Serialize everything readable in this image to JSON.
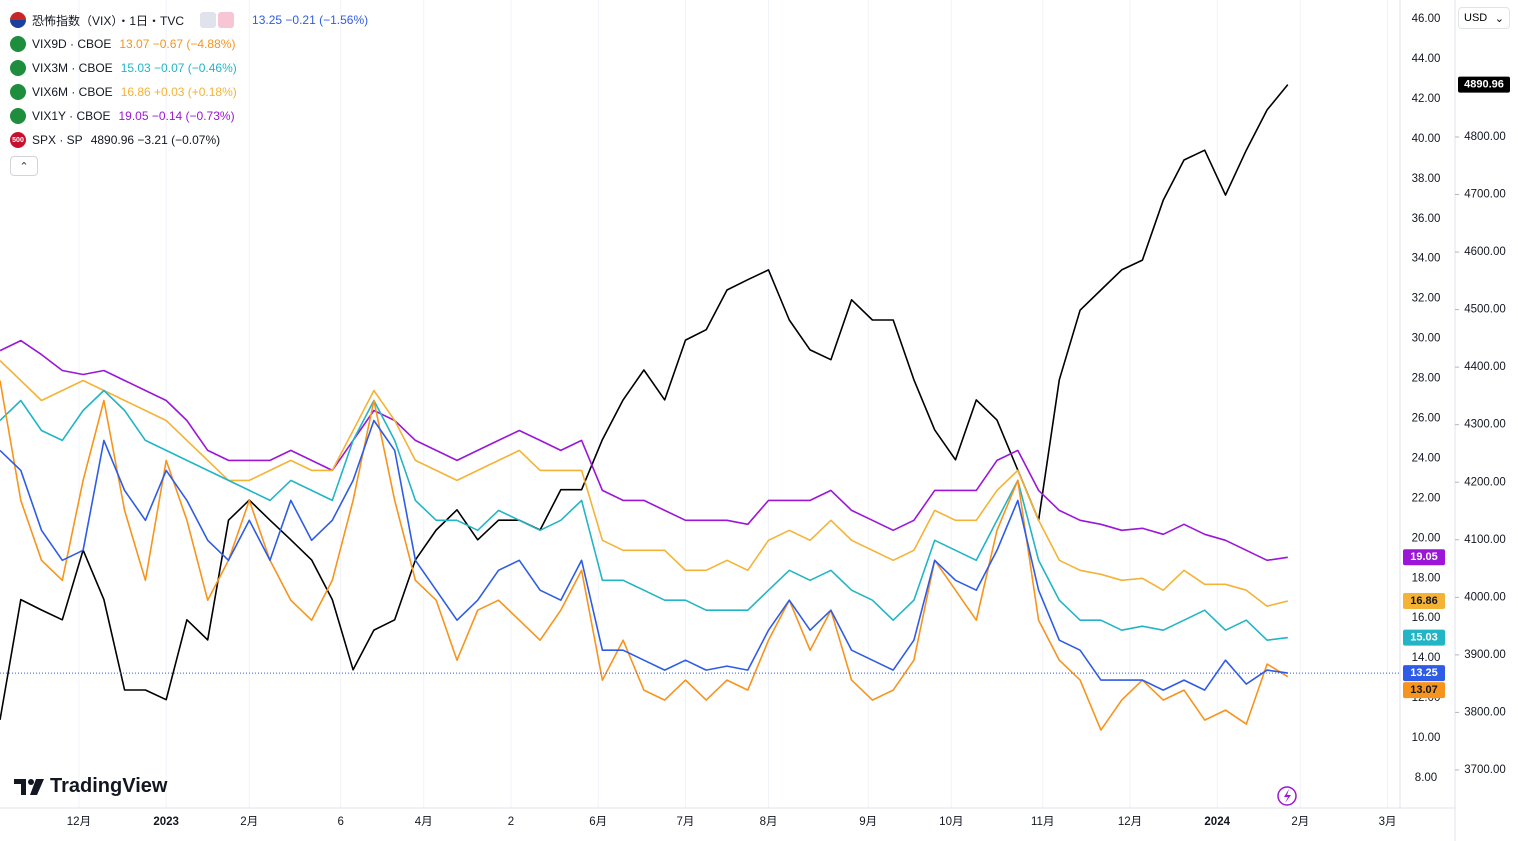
{
  "chart_data": {
    "type": "line",
    "x": [
      0,
      5,
      10,
      15,
      20,
      25,
      30,
      35,
      40,
      45,
      50,
      55,
      60,
      65,
      70,
      75,
      80,
      85,
      90,
      95,
      100,
      105,
      110,
      115,
      120,
      125,
      130,
      135,
      140,
      145,
      150,
      155,
      160,
      165,
      170,
      175,
      180,
      185,
      190,
      195,
      200,
      205,
      210,
      215,
      220,
      225,
      230,
      235,
      240,
      245,
      250,
      255,
      260,
      265,
      270,
      275,
      280,
      285,
      290,
      295,
      300,
      305,
      310
    ],
    "xlim": [
      0,
      337
    ],
    "xticks": [
      {
        "value": 19,
        "label": "12月"
      },
      {
        "value": 40,
        "label": "2023"
      },
      {
        "value": 60,
        "label": "2月"
      },
      {
        "value": 82,
        "label": "6"
      },
      {
        "value": 102,
        "label": "4月"
      },
      {
        "value": 123,
        "label": "2"
      },
      {
        "value": 144,
        "label": "6月"
      },
      {
        "value": 165,
        "label": "7月"
      },
      {
        "value": 185,
        "label": "8月"
      },
      {
        "value": 209,
        "label": "9月"
      },
      {
        "value": 229,
        "label": "10月"
      },
      {
        "value": 251,
        "label": "11月"
      },
      {
        "value": 272,
        "label": "12月"
      },
      {
        "value": 293,
        "label": "2024"
      },
      {
        "value": 313,
        "label": "2月"
      },
      {
        "value": 334,
        "label": "3月"
      }
    ],
    "ylim": [
      8,
      46
    ],
    "yticks": [
      {
        "value": 8,
        "label": "8.00"
      },
      {
        "value": 10,
        "label": "10.00"
      },
      {
        "value": 12,
        "label": "12.00"
      },
      {
        "value": 14,
        "label": "14.00"
      },
      {
        "value": 16,
        "label": "16.00"
      },
      {
        "value": 18,
        "label": "18.00"
      },
      {
        "value": 20,
        "label": "20.00"
      },
      {
        "value": 22,
        "label": "22.00"
      },
      {
        "value": 24,
        "label": "24.00"
      },
      {
        "value": 26,
        "label": "26.00"
      },
      {
        "value": 28,
        "label": "28.00"
      },
      {
        "value": 30,
        "label": "30.00"
      },
      {
        "value": 32,
        "label": "32.00"
      },
      {
        "value": 34,
        "label": "34.00"
      },
      {
        "value": 36,
        "label": "36.00"
      },
      {
        "value": 38,
        "label": "38.00"
      },
      {
        "value": 40,
        "label": "40.00"
      },
      {
        "value": 42,
        "label": "42.00"
      },
      {
        "value": 44,
        "label": "44.00"
      },
      {
        "value": 46,
        "label": "46.00"
      }
    ],
    "y2lim": [
      3686,
      5005
    ],
    "y2ticks": [
      {
        "value": 3700,
        "label": "3700.00"
      },
      {
        "value": 3800,
        "label": "3800.00"
      },
      {
        "value": 3900,
        "label": "3900.00"
      },
      {
        "value": 4000,
        "label": "4000.00"
      },
      {
        "value": 4100,
        "label": "4100.00"
      },
      {
        "value": 4200,
        "label": "4200.00"
      },
      {
        "value": 4300,
        "label": "4300.00"
      },
      {
        "value": 4400,
        "label": "4400.00"
      },
      {
        "value": 4500,
        "label": "4500.00"
      },
      {
        "value": 4600,
        "label": "4600.00"
      },
      {
        "value": 4700,
        "label": "4700.00"
      },
      {
        "value": 4800,
        "label": "4800.00"
      }
    ],
    "grid": true,
    "currency": "USD",
    "logo": "TradingView",
    "series": [
      {
        "name": "恐怖指数（VIX）・1日・TVC",
        "legend_value": "13.25 −0.21 (−1.56%)",
        "color": "#2f5ce6",
        "values": [
          24.4,
          23.4,
          20.4,
          18.9,
          19.4,
          24.9,
          22.4,
          20.9,
          23.4,
          21.9,
          19.9,
          18.9,
          20.9,
          18.9,
          21.9,
          19.9,
          20.9,
          22.9,
          25.9,
          24.4,
          18.9,
          17.4,
          15.9,
          16.9,
          18.4,
          18.9,
          17.4,
          16.9,
          18.9,
          14.4,
          14.4,
          13.9,
          13.4,
          13.9,
          13.4,
          13.6,
          13.4,
          15.4,
          16.9,
          15.4,
          16.4,
          14.4,
          13.9,
          13.4,
          14.9,
          18.9,
          17.9,
          17.4,
          19.4,
          21.9,
          17.4,
          14.9,
          14.4,
          12.9,
          12.9,
          12.9,
          12.4,
          12.9,
          12.4,
          13.9,
          12.7,
          13.4,
          13.25
        ]
      },
      {
        "name": "VIX9D · CBOE",
        "legend_value": "13.07 −0.67 (−4.88%)",
        "color": "#f7941d",
        "values": [
          27.9,
          21.9,
          18.9,
          17.9,
          22.9,
          26.9,
          21.4,
          17.9,
          23.9,
          20.9,
          16.9,
          18.9,
          21.9,
          18.9,
          16.9,
          15.9,
          17.9,
          21.9,
          26.9,
          21.9,
          17.9,
          16.9,
          13.9,
          16.4,
          16.9,
          15.9,
          14.9,
          16.4,
          18.4,
          12.9,
          14.9,
          12.4,
          11.9,
          12.9,
          11.9,
          12.9,
          12.4,
          14.9,
          16.9,
          14.4,
          16.4,
          12.9,
          11.9,
          12.4,
          13.9,
          18.9,
          17.4,
          15.9,
          20.4,
          22.9,
          15.9,
          13.9,
          12.9,
          10.4,
          11.9,
          12.9,
          11.9,
          12.4,
          10.9,
          11.4,
          10.7,
          13.7,
          13.07
        ]
      },
      {
        "name": "VIX3M · CBOE",
        "legend_value": "15.03 −0.07 (−0.46%)",
        "color": "#22b5c5",
        "values": [
          25.9,
          26.9,
          25.4,
          24.9,
          26.4,
          27.4,
          26.4,
          24.9,
          24.4,
          23.9,
          23.4,
          22.9,
          22.4,
          21.9,
          22.9,
          22.4,
          21.9,
          24.9,
          26.9,
          24.9,
          21.9,
          20.9,
          20.9,
          20.4,
          21.4,
          20.9,
          20.4,
          20.9,
          21.9,
          17.9,
          17.9,
          17.4,
          16.9,
          16.9,
          16.4,
          16.4,
          16.4,
          17.4,
          18.4,
          17.9,
          18.4,
          17.4,
          16.9,
          15.9,
          16.9,
          19.9,
          19.4,
          18.9,
          20.9,
          22.9,
          18.9,
          16.9,
          15.9,
          15.9,
          15.4,
          15.6,
          15.4,
          15.9,
          16.4,
          15.4,
          15.9,
          14.9,
          15.03
        ]
      },
      {
        "name": "VIX6M · CBOE",
        "legend_value": "16.86 +0.03 (+0.18%)",
        "color": "#f5b335",
        "values": [
          28.9,
          27.9,
          26.9,
          27.4,
          27.9,
          27.4,
          26.9,
          26.4,
          25.9,
          24.9,
          23.9,
          22.9,
          22.9,
          23.4,
          23.9,
          23.4,
          23.4,
          25.4,
          27.4,
          25.9,
          23.9,
          23.4,
          22.9,
          23.4,
          23.9,
          24.4,
          23.4,
          23.4,
          23.4,
          19.9,
          19.4,
          19.4,
          19.4,
          18.4,
          18.4,
          18.9,
          18.4,
          19.9,
          20.4,
          19.9,
          20.9,
          19.9,
          19.4,
          18.9,
          19.4,
          21.4,
          20.9,
          20.9,
          22.4,
          23.4,
          20.9,
          18.9,
          18.4,
          18.2,
          17.9,
          18.0,
          17.4,
          18.4,
          17.7,
          17.7,
          17.4,
          16.6,
          16.86
        ]
      },
      {
        "name": "VIX1Y · CBOE",
        "legend_value": "19.05 −0.14 (−0.73%)",
        "color": "#9b16d8",
        "values": [
          29.4,
          29.9,
          29.2,
          28.4,
          28.2,
          28.4,
          27.9,
          27.4,
          26.9,
          25.9,
          24.4,
          23.9,
          23.9,
          23.9,
          24.4,
          23.9,
          23.4,
          24.9,
          26.4,
          25.9,
          24.9,
          24.4,
          23.9,
          24.4,
          24.9,
          25.4,
          24.9,
          24.4,
          24.9,
          22.4,
          21.9,
          21.9,
          21.4,
          20.9,
          20.9,
          20.9,
          20.7,
          21.9,
          21.9,
          21.9,
          22.4,
          21.4,
          20.9,
          20.4,
          20.9,
          22.4,
          22.4,
          22.4,
          23.9,
          24.4,
          22.4,
          21.4,
          20.9,
          20.7,
          20.4,
          20.5,
          20.2,
          20.7,
          20.2,
          19.9,
          19.4,
          18.9,
          19.05
        ]
      },
      {
        "name": "SPX · SP",
        "badge": "500",
        "legend_value": "4890.96 −3.21 (−0.07%)",
        "color": "#000000",
        "axis": "y2",
        "values": [
          3787,
          3996,
          3978,
          3961,
          4082,
          3996,
          3839,
          3839,
          3822,
          3961,
          3926,
          4134,
          4169,
          4134,
          4100,
          4065,
          3996,
          3874,
          3943,
          3961,
          4065,
          4117,
          4152,
          4100,
          4134,
          4134,
          4117,
          4187,
          4187,
          4274,
          4343,
          4395,
          4343,
          4447,
          4465,
          4534,
          4552,
          4569,
          4482,
          4430,
          4413,
          4517,
          4482,
          4482,
          4378,
          4291,
          4239,
          4343,
          4308,
          4221,
          4134,
          4378,
          4499,
          4534,
          4569,
          4586,
          4690,
          4760,
          4777,
          4699,
          4777,
          4847,
          4890.96
        ]
      }
    ]
  }
}
